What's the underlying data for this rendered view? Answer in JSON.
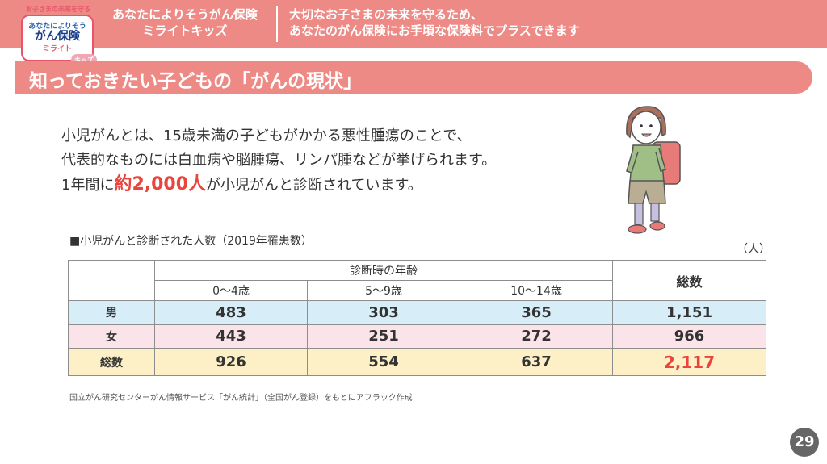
{
  "header": {
    "logo": {
      "top_text": "お子さまの未来を守る",
      "line1": "あなたによりそう",
      "line2": "がん保険",
      "line3": "ミライト",
      "kids": "キッズ"
    },
    "product_line1": "あなたによりそうがん保険",
    "product_line2": "ミライトキッズ",
    "tagline_line1": "大切なお子さまの未来を守るため、",
    "tagline_line2": "あなたのがん保険にお手頃な保険料でプラスできます"
  },
  "section_title": "知っておきたい子どもの「がんの現状」",
  "intro": {
    "line1": "小児がんとは、15歳未満の子どもがかかる悪性腫瘍のことで、",
    "line2": "代表的なものには白血病や脳腫瘍、リンパ腫などが挙げられます。",
    "line3_pre": "1年間に",
    "line3_highlight": "約2,000人",
    "line3_post": "が小児がんと診断されています。"
  },
  "table": {
    "caption": "■小児がんと診断された人数（2019年罹患数）",
    "unit": "（人）",
    "group_header": "診断時の年齢",
    "columns": [
      "0～4歳",
      "5～9歳",
      "10～14歳"
    ],
    "total_header": "総数",
    "rows": [
      {
        "label": "男",
        "values": [
          "483",
          "303",
          "365"
        ],
        "total": "1,151"
      },
      {
        "label": "女",
        "values": [
          "443",
          "251",
          "272"
        ],
        "total": "966"
      },
      {
        "label": "総数",
        "values": [
          "926",
          "554",
          "637"
        ],
        "total": "2,117"
      }
    ]
  },
  "source": "国立がん研究センターがん情報サービス「がん統計」（全国がん登録）をもとにアフラック作成",
  "page_number": "29",
  "colors": {
    "accent": "#ee8a85",
    "highlight": "#e8453c",
    "row_boy": "#d7eef8",
    "row_girl": "#fbe3ea",
    "row_total": "#fdf0c6"
  }
}
